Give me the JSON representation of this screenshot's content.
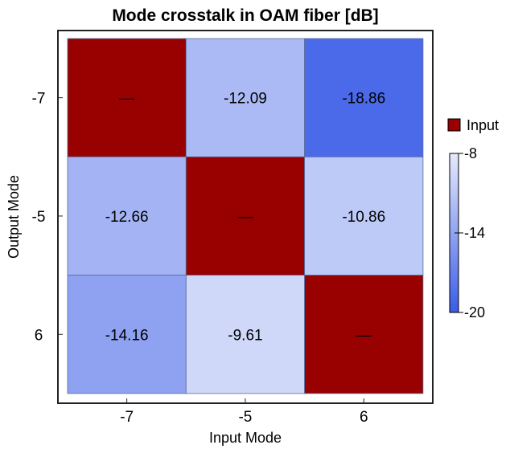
{
  "chart_data": {
    "type": "heatmap",
    "title": "Mode crosstalk in OAM fiber [dB]",
    "xlabel": "Input Mode",
    "ylabel": "Output Mode",
    "x_categories": [
      "-7",
      "-5",
      "6"
    ],
    "y_categories": [
      "-7",
      "-5",
      "6"
    ],
    "values": [
      [
        null,
        -12.09,
        -18.86
      ],
      [
        -12.66,
        null,
        -10.86
      ],
      [
        -14.16,
        -9.61,
        null
      ]
    ],
    "diagonal_label": "—",
    "colorbar": {
      "min": -20,
      "max": -8,
      "ticks": [
        -8,
        -14,
        -20
      ],
      "low_color": "#3a5ce8",
      "high_color": "#e6ebfb"
    },
    "legend": {
      "label": "Input",
      "color": "#990000",
      "placement": "right"
    },
    "input_cell_color": "#990000"
  }
}
